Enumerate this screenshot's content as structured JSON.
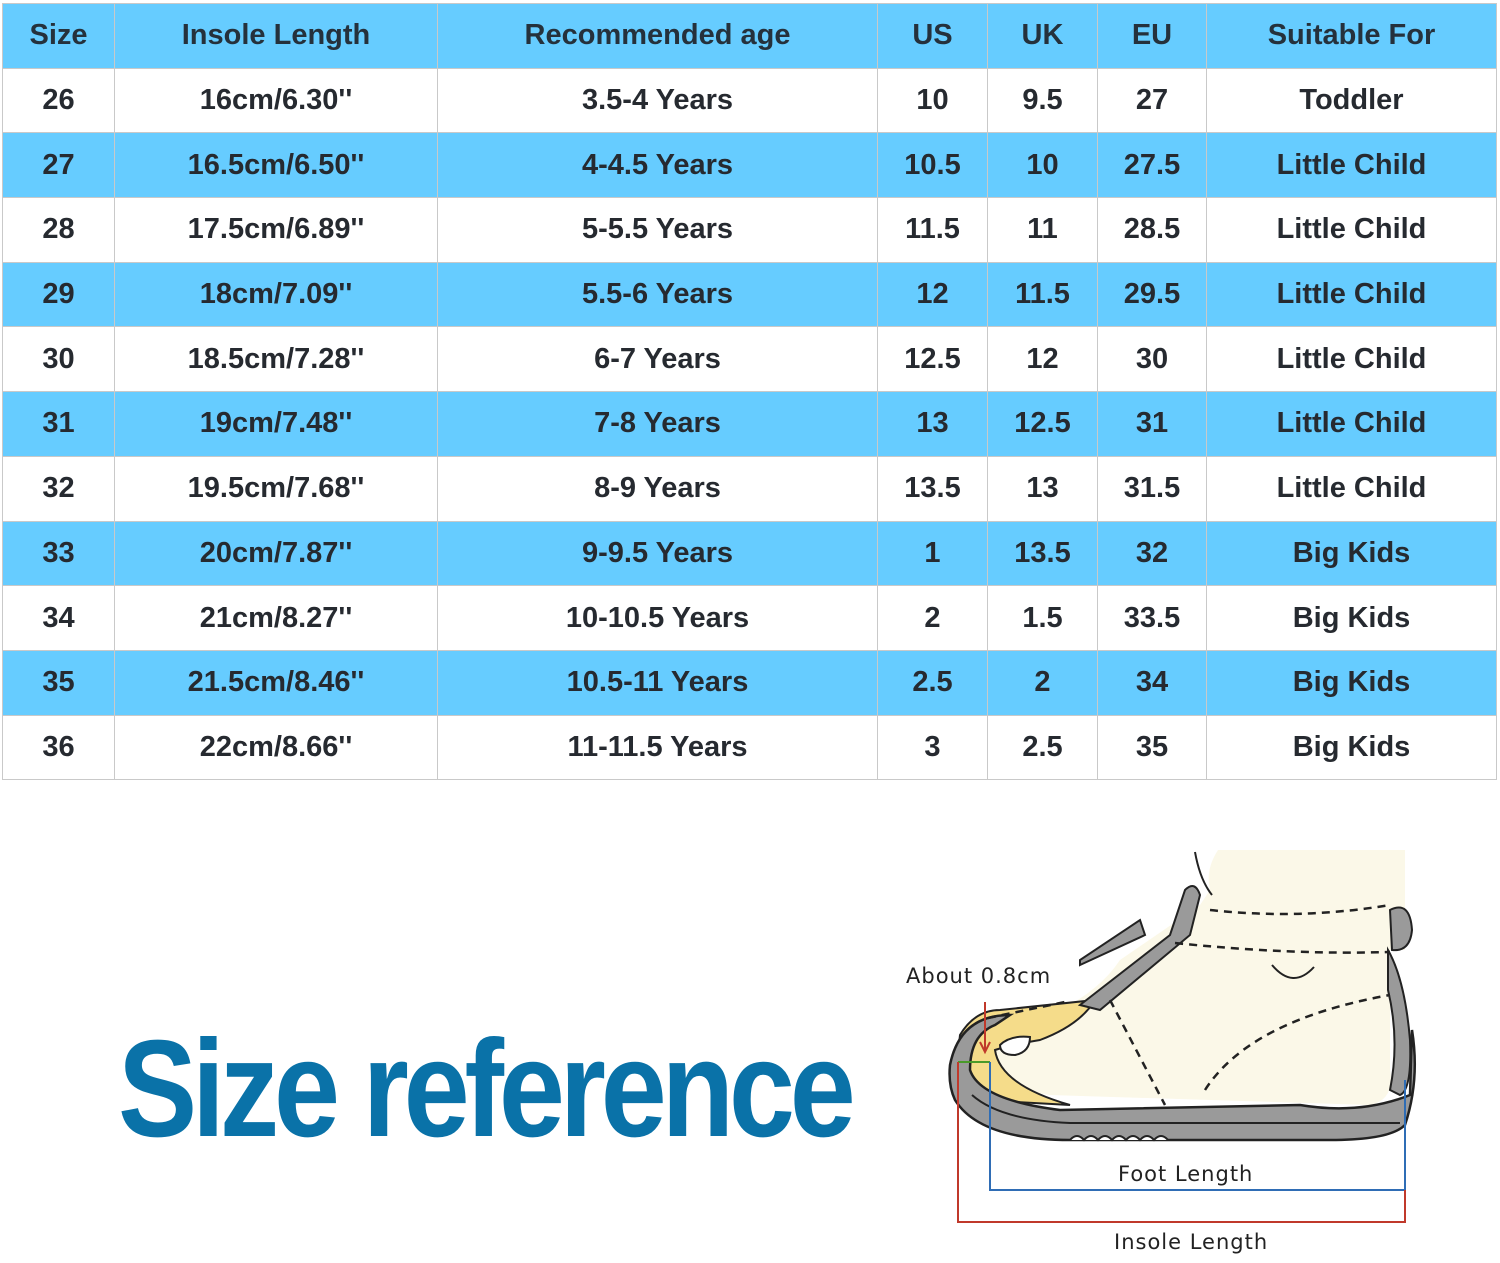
{
  "table": {
    "headers": [
      "Size",
      "Insole Length",
      "Recommended age",
      "US",
      "UK",
      "EU",
      "Suitable For"
    ],
    "rows": [
      [
        "26",
        "16cm/6.30''",
        "3.5-4 Years",
        "10",
        "9.5",
        "27",
        "Toddler"
      ],
      [
        "27",
        "16.5cm/6.50''",
        "4-4.5 Years",
        "10.5",
        "10",
        "27.5",
        "Little Child"
      ],
      [
        "28",
        "17.5cm/6.89''",
        "5-5.5 Years",
        "11.5",
        "11",
        "28.5",
        "Little Child"
      ],
      [
        "29",
        "18cm/7.09''",
        "5.5-6 Years",
        "12",
        "11.5",
        "29.5",
        "Little Child"
      ],
      [
        "30",
        "18.5cm/7.28''",
        "6-7 Years",
        "12.5",
        "12",
        "30",
        "Little Child"
      ],
      [
        "31",
        "19cm/7.48''",
        "7-8 Years",
        "13",
        "12.5",
        "31",
        "Little Child"
      ],
      [
        "32",
        "19.5cm/7.68''",
        "8-9 Years",
        "13.5",
        "13",
        "31.5",
        "Little Child"
      ],
      [
        "33",
        "20cm/7.87''",
        "9-9.5 Years",
        "1",
        "13.5",
        "32",
        "Big Kids"
      ],
      [
        "34",
        "21cm/8.27''",
        "10-10.5 Years",
        "2",
        "1.5",
        "33.5",
        "Big Kids"
      ],
      [
        "35",
        "21.5cm/8.46''",
        "10.5-11 Years",
        "2.5",
        "2",
        "34",
        "Big Kids"
      ],
      [
        "36",
        "22cm/8.66''",
        "11-11.5 Years",
        "3",
        "2.5",
        "35",
        "Big Kids"
      ]
    ]
  },
  "title": "Size reference",
  "illustration": {
    "toe_gap_label": "About 0.8cm",
    "foot_length_label": "Foot Length",
    "insole_length_label": "Insole Length"
  },
  "colors": {
    "header_blue": "#66ccff",
    "title_blue": "#0a72a8",
    "insole_line": "#c0392b",
    "foot_line": "#2f6db5"
  }
}
